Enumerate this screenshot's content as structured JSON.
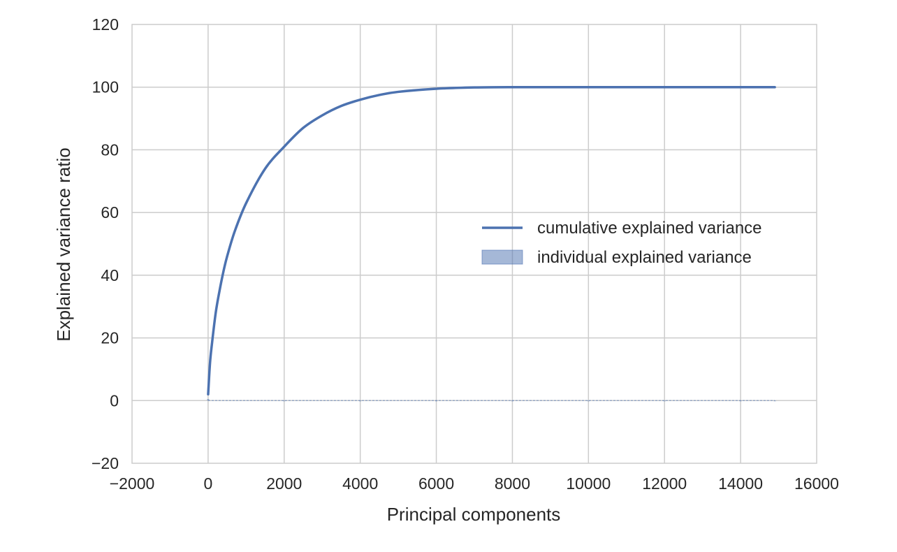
{
  "chart_data": {
    "type": "line",
    "xlabel": "Principal components",
    "ylabel": "Explained variance ratio",
    "xlim": [
      -2000,
      16000
    ],
    "ylim": [
      -20,
      120
    ],
    "xticks": [
      -2000,
      0,
      2000,
      4000,
      6000,
      8000,
      10000,
      12000,
      14000,
      16000
    ],
    "xtick_labels": [
      "−2000",
      "0",
      "2000",
      "4000",
      "6000",
      "8000",
      "10000",
      "12000",
      "14000",
      "16000"
    ],
    "yticks": [
      -20,
      0,
      20,
      40,
      60,
      80,
      100,
      120
    ],
    "ytick_labels": [
      "−20",
      "0",
      "20",
      "40",
      "60",
      "80",
      "100",
      "120"
    ],
    "grid": true,
    "legend_position": "center-right",
    "series": [
      {
        "name": "cumulative explained variance",
        "kind": "line",
        "color": "#4c72b0",
        "x": [
          1,
          50,
          100,
          200,
          300,
          400,
          500,
          700,
          1000,
          1500,
          2000,
          2500,
          3000,
          3500,
          4000,
          4500,
          5000,
          6000,
          7000,
          8000,
          10000,
          12000,
          14000,
          14900
        ],
        "y": [
          2,
          12,
          18,
          28,
          35,
          41,
          46,
          54,
          63,
          74,
          81,
          87,
          91,
          94,
          96,
          97.5,
          98.5,
          99.5,
          99.9,
          100,
          100,
          100,
          100,
          100
        ]
      },
      {
        "name": "individual explained variance",
        "kind": "bar",
        "color": "#4c72b0",
        "x": [
          1,
          2000,
          4000,
          6000,
          8000,
          10000,
          12000,
          14000,
          14900
        ],
        "y": [
          0.5,
          0.01,
          0,
          0,
          0,
          0,
          0,
          0,
          0
        ]
      }
    ]
  }
}
